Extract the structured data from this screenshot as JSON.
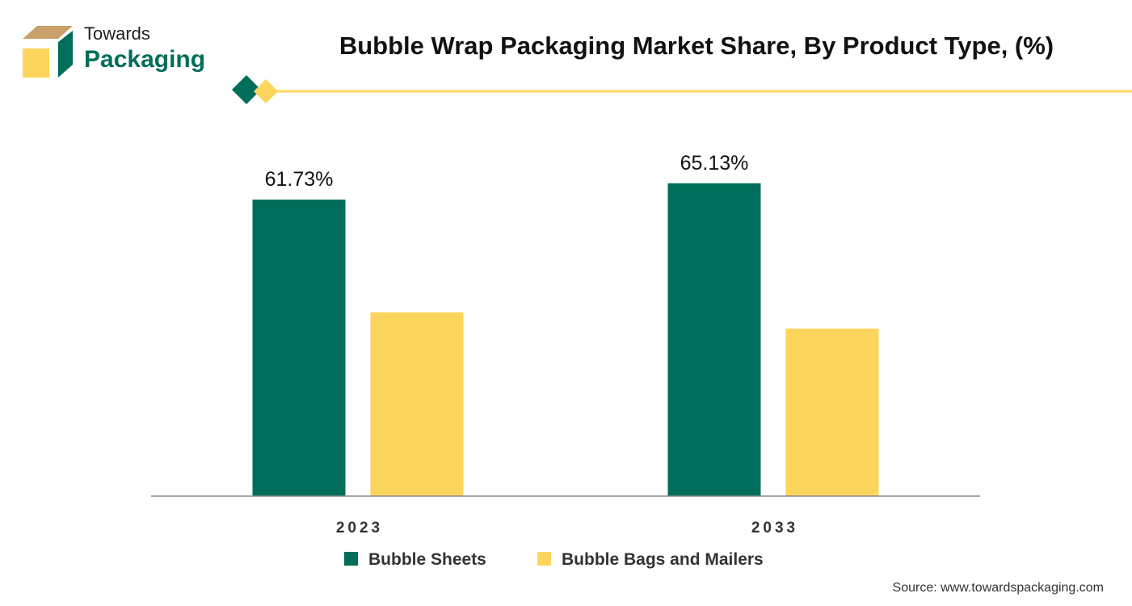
{
  "header": {
    "brand_line1": "Towards",
    "brand_line2": "Packaging"
  },
  "source": "Source: www.towardspackaging.com",
  "colors": {
    "series_1": "#006e5a",
    "series_2": "#fdd55c",
    "logo_tan": "#c9a06a",
    "logo_yellow": "#fdd55c",
    "logo_green": "#006e5a",
    "rule": "#fdd55c"
  },
  "chart_data": {
    "type": "bar",
    "title": "Bubble Wrap Packaging Market Share, By Product Type, (%)",
    "categories": [
      "2023",
      "2033"
    ],
    "series": [
      {
        "name": "Bubble Sheets",
        "values": [
          61.73,
          65.13
        ],
        "labels": [
          "61.73%",
          "65.13%"
        ],
        "color": "#006e5a"
      },
      {
        "name": "Bubble Bags and Mailers",
        "values": [
          38.27,
          34.87
        ],
        "labels": [
          "",
          ""
        ],
        "color": "#fdd55c"
      }
    ],
    "ylim": [
      0,
      70
    ],
    "grid": false,
    "legend": "bottom-center"
  }
}
